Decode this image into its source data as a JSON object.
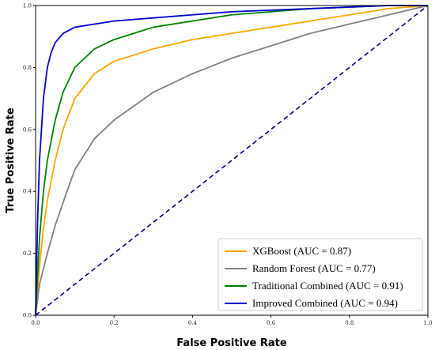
{
  "chart_data": {
    "type": "line",
    "title": "",
    "xlabel": "False Positive Rate",
    "ylabel": "True Positive Rate",
    "xlim": [
      0.0,
      1.0
    ],
    "ylim": [
      0.0,
      1.0
    ],
    "x_ticks": [
      "0.0",
      "0.2",
      "0.4",
      "0.6",
      "0.8",
      "1.0"
    ],
    "y_ticks": [
      "0.0",
      "0.2",
      "0.4",
      "0.6",
      "0.8",
      "1.0"
    ],
    "grid": false,
    "legend_position": "bottom-right",
    "baseline": {
      "color": "#000080",
      "style": "dashed",
      "x": [
        0.0,
        1.0
      ],
      "y": [
        0.0,
        1.0
      ]
    },
    "series": [
      {
        "name": "XGBoost (AUC = 0.87)",
        "color": "#FFA500",
        "x": [
          0.0,
          0.01,
          0.02,
          0.03,
          0.05,
          0.07,
          0.1,
          0.15,
          0.2,
          0.3,
          0.4,
          0.5,
          0.6,
          0.7,
          0.8,
          0.9,
          1.0
        ],
        "y": [
          0.0,
          0.16,
          0.28,
          0.37,
          0.5,
          0.6,
          0.7,
          0.78,
          0.82,
          0.86,
          0.89,
          0.91,
          0.93,
          0.95,
          0.97,
          0.99,
          1.0
        ]
      },
      {
        "name": "Random Forest (AUC = 0.77)",
        "color": "#808080",
        "x": [
          0.0,
          0.01,
          0.03,
          0.05,
          0.08,
          0.1,
          0.15,
          0.2,
          0.3,
          0.4,
          0.5,
          0.6,
          0.7,
          0.8,
          0.9,
          1.0
        ],
        "y": [
          0.0,
          0.1,
          0.2,
          0.29,
          0.4,
          0.47,
          0.57,
          0.63,
          0.72,
          0.78,
          0.83,
          0.87,
          0.91,
          0.94,
          0.97,
          1.0
        ]
      },
      {
        "name": "Traditional Combined (AUC = 0.91)",
        "color": "#008000",
        "x": [
          0.0,
          0.01,
          0.02,
          0.03,
          0.05,
          0.07,
          0.1,
          0.15,
          0.2,
          0.25,
          0.3,
          0.4,
          0.5,
          0.6,
          0.7,
          0.8,
          0.9,
          1.0
        ],
        "y": [
          0.0,
          0.25,
          0.4,
          0.5,
          0.63,
          0.72,
          0.8,
          0.86,
          0.89,
          0.91,
          0.93,
          0.95,
          0.97,
          0.98,
          0.99,
          0.995,
          1.0,
          1.0
        ]
      },
      {
        "name": "Improved Combined (AUC = 0.94)",
        "color": "#0000CD",
        "x": [
          0.0,
          0.005,
          0.01,
          0.02,
          0.03,
          0.04,
          0.05,
          0.07,
          0.1,
          0.15,
          0.2,
          0.3,
          0.4,
          0.5,
          0.6,
          0.7,
          0.8,
          0.9,
          1.0
        ],
        "y": [
          0.0,
          0.3,
          0.5,
          0.7,
          0.8,
          0.85,
          0.88,
          0.91,
          0.93,
          0.94,
          0.95,
          0.96,
          0.97,
          0.98,
          0.985,
          0.99,
          0.995,
          1.0,
          1.0
        ]
      }
    ]
  }
}
